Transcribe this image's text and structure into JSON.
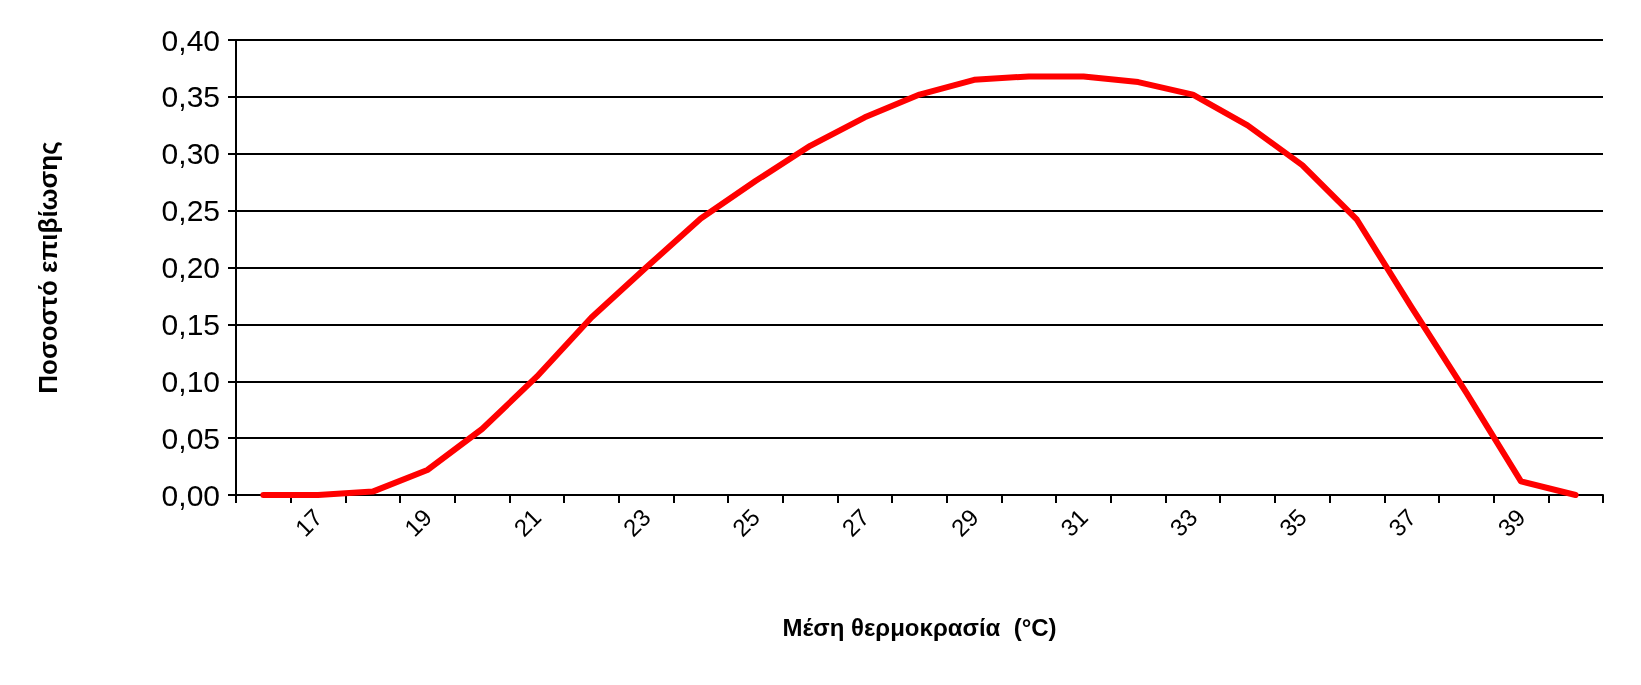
{
  "chart_data": {
    "type": "line",
    "xlabel": "Μέση θερμοκρασία  (°C)",
    "ylabel": "Ποσοστό επιβίωσης",
    "categories": [
      null,
      "17",
      null,
      "19",
      null,
      "21",
      null,
      "23",
      null,
      "25",
      null,
      "27",
      null,
      "29",
      null,
      "31",
      null,
      "33",
      null,
      "35",
      null,
      "37",
      null,
      "39",
      null
    ],
    "series": [
      {
        "color": "#ff0000",
        "values": [
          0,
          0,
          0.003,
          0.022,
          0.058,
          0.104,
          0.156,
          0.2,
          0.243,
          0.276,
          0.307,
          0.332,
          0.352,
          0.365,
          0.368,
          0.368,
          0.363,
          0.352,
          0.325,
          0.29,
          0.242,
          0.165,
          0.09,
          0.012,
          0
        ]
      }
    ],
    "ylim": [
      0,
      0.4
    ],
    "yticks": [
      {
        "value": 0,
        "label": "0,00"
      },
      {
        "value": 0.05,
        "label": "0,05"
      },
      {
        "value": 0.1,
        "label": "0,10"
      },
      {
        "value": 0.15,
        "label": "0,15"
      },
      {
        "value": 0.2,
        "label": "0,20"
      },
      {
        "value": 0.25,
        "label": "0,25"
      },
      {
        "value": 0.3,
        "label": "0,30"
      },
      {
        "value": 0.35,
        "label": "0,35"
      },
      {
        "value": 0.4,
        "label": "0,40"
      }
    ],
    "grid": "y",
    "marker": "none",
    "line_style": "solid"
  }
}
